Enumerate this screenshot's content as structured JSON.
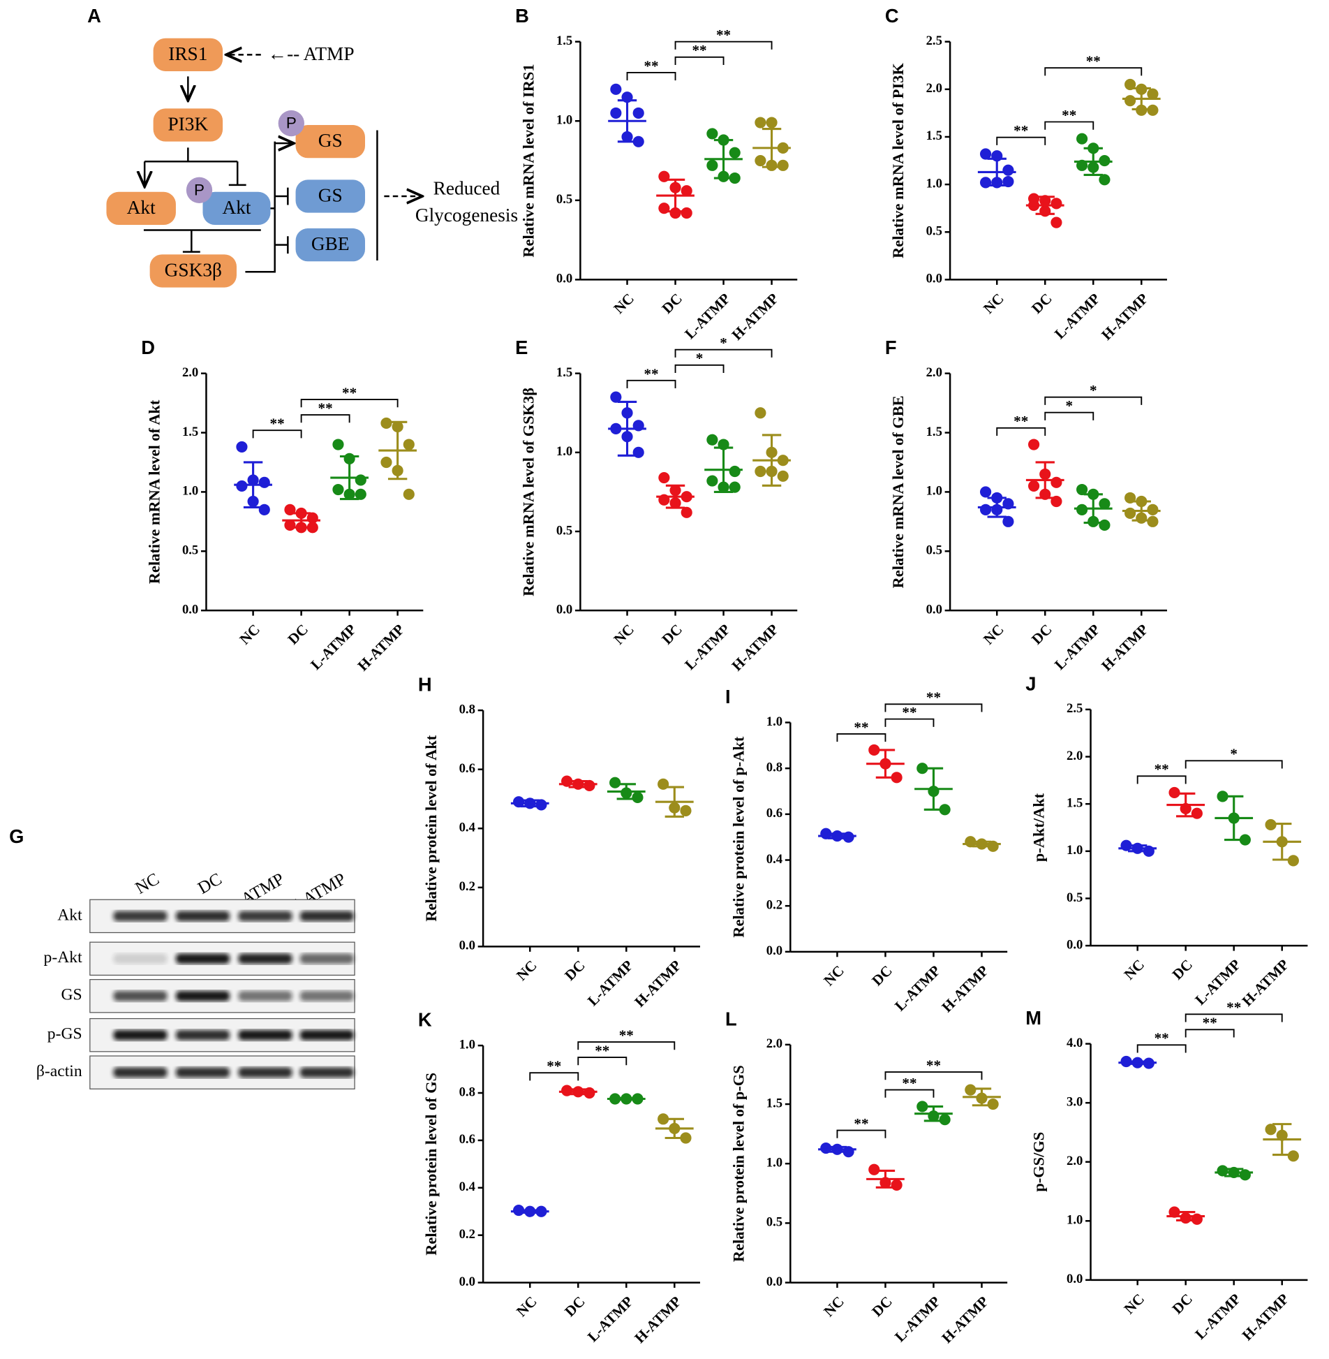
{
  "diagram": {
    "label": "A",
    "nodes": [
      "IRS1",
      "←-- ATMP",
      "PI3K",
      "Akt",
      "P",
      "Akt",
      "GSK3β",
      "P",
      "GS",
      "GS",
      "GBE",
      "Reduced",
      "Glycogenesis"
    ]
  },
  "blot": {
    "label": "G",
    "lanes": [
      "NC",
      "DC",
      "L-ATMP",
      "H-ATMP"
    ],
    "rows": [
      "Akt",
      "p-Akt",
      "GS",
      "p-GS",
      "β-actin"
    ]
  },
  "chart_data": [
    {
      "type": "dotplot",
      "label": "B",
      "ylabel": "Relative mRNA level of IRS1",
      "categories": [
        "NC",
        "DC",
        "L-ATMP",
        "H-ATMP"
      ],
      "colors": [
        "#1f1fd6",
        "#e8131b",
        "#178a17",
        "#9c8d1c"
      ],
      "groups": [
        [
          1.2,
          1.15,
          1.05,
          1.05,
          0.9,
          0.87
        ],
        [
          0.65,
          0.58,
          0.56,
          0.45,
          0.42,
          0.42
        ],
        [
          0.92,
          0.88,
          0.8,
          0.72,
          0.65,
          0.64
        ],
        [
          0.99,
          0.99,
          0.83,
          0.75,
          0.72,
          0.72
        ]
      ],
      "means": [
        1.0,
        0.53,
        0.76,
        0.83
      ],
      "sd": [
        0.13,
        0.1,
        0.12,
        0.12
      ],
      "ylim": [
        0,
        1.5
      ],
      "yticks": [
        {
          "value": 0,
          "label": "0.0"
        },
        0.5,
        {
          "value": 1,
          "label": "1.0"
        },
        1.5
      ],
      "brackets": [
        {
          "pair": [
            0,
            1
          ],
          "label": "**"
        },
        {
          "pair": [
            1,
            2
          ],
          "label": "**"
        },
        {
          "pair": [
            1,
            3
          ],
          "label": "**"
        }
      ]
    },
    {
      "type": "dotplot",
      "label": "C",
      "ylabel": "Relative mRNA level of PI3K",
      "categories": [
        "NC",
        "DC",
        "L-ATMP",
        "H-ATMP"
      ],
      "colors": [
        "#1f1fd6",
        "#e8131b",
        "#178a17",
        "#9c8d1c"
      ],
      "groups": [
        [
          1.32,
          1.3,
          1.15,
          1.02,
          1.02,
          1.03
        ],
        [
          0.85,
          0.83,
          0.8,
          0.78,
          0.72,
          0.6
        ],
        [
          1.48,
          1.38,
          1.25,
          1.2,
          1.18,
          1.05
        ],
        [
          2.05,
          2.0,
          1.95,
          1.88,
          1.78,
          1.78
        ]
      ],
      "means": [
        1.13,
        0.78,
        1.24,
        1.9
      ],
      "sd": [
        0.14,
        0.09,
        0.14,
        0.11
      ],
      "ylim": [
        0,
        2.5
      ],
      "yticks": [
        {
          "value": 0,
          "label": "0.0"
        },
        0.5,
        {
          "value": 1,
          "label": "1.0"
        },
        1.5,
        {
          "value": 2,
          "label": "2.0"
        },
        2.5
      ],
      "brackets": [
        {
          "pair": [
            0,
            1
          ],
          "label": "**"
        },
        {
          "pair": [
            1,
            2
          ],
          "label": "**"
        },
        {
          "pair": [
            1,
            3
          ],
          "label": "**"
        }
      ]
    },
    {
      "type": "dotplot",
      "label": "D",
      "ylabel": "Relative mRNA level of Akt",
      "categories": [
        "NC",
        "DC",
        "L-ATMP",
        "H-ATMP"
      ],
      "colors": [
        "#1f1fd6",
        "#e8131b",
        "#178a17",
        "#9c8d1c"
      ],
      "groups": [
        [
          1.38,
          1.1,
          1.08,
          1.05,
          0.92,
          0.85
        ],
        [
          0.85,
          0.82,
          0.78,
          0.72,
          0.7,
          0.7
        ],
        [
          1.4,
          1.28,
          1.1,
          1.02,
          0.98,
          0.98
        ],
        [
          1.58,
          1.55,
          1.4,
          1.25,
          1.18,
          0.98
        ]
      ],
      "means": [
        1.06,
        0.76,
        1.12,
        1.35
      ],
      "sd": [
        0.19,
        0.06,
        0.18,
        0.24
      ],
      "ylim": [
        0,
        2
      ],
      "yticks": [
        {
          "value": 0,
          "label": "0.0"
        },
        0.5,
        {
          "value": 1,
          "label": "1.0"
        },
        1.5,
        {
          "value": 2,
          "label": "2.0"
        }
      ],
      "brackets": [
        {
          "pair": [
            0,
            1
          ],
          "label": "**"
        },
        {
          "pair": [
            1,
            2
          ],
          "label": "**"
        },
        {
          "pair": [
            1,
            3
          ],
          "label": "**"
        }
      ]
    },
    {
      "type": "dotplot",
      "label": "E",
      "ylabel": "Relative mRNA level of GSK3β",
      "categories": [
        "NC",
        "DC",
        "L-ATMP",
        "H-ATMP"
      ],
      "colors": [
        "#1f1fd6",
        "#e8131b",
        "#178a17",
        "#9c8d1c"
      ],
      "groups": [
        [
          1.35,
          1.25,
          1.17,
          1.15,
          1.1,
          1.0
        ],
        [
          0.84,
          0.76,
          0.72,
          0.7,
          0.68,
          0.62
        ],
        [
          1.08,
          1.05,
          0.88,
          0.82,
          0.78,
          0.78
        ],
        [
          1.25,
          1.0,
          0.95,
          0.88,
          0.88,
          0.85
        ]
      ],
      "means": [
        1.15,
        0.72,
        0.89,
        0.95
      ],
      "sd": [
        0.17,
        0.07,
        0.14,
        0.16
      ],
      "ylim": [
        0,
        1.5
      ],
      "yticks": [
        {
          "value": 0,
          "label": "0.0"
        },
        0.5,
        {
          "value": 1,
          "label": "1.0"
        },
        1.5
      ],
      "brackets": [
        {
          "pair": [
            0,
            1
          ],
          "label": "**"
        },
        {
          "pair": [
            1,
            2
          ],
          "label": "*"
        },
        {
          "pair": [
            1,
            3
          ],
          "label": "*"
        }
      ]
    },
    {
      "type": "dotplot",
      "label": "F",
      "ylabel": "Relative mRNA level of GBE",
      "categories": [
        "NC",
        "DC",
        "L-ATMP",
        "H-ATMP"
      ],
      "colors": [
        "#1f1fd6",
        "#e8131b",
        "#178a17",
        "#9c8d1c"
      ],
      "groups": [
        [
          1.0,
          0.95,
          0.9,
          0.85,
          0.85,
          0.75
        ],
        [
          1.4,
          1.15,
          1.08,
          1.05,
          0.98,
          0.92
        ],
        [
          1.02,
          0.98,
          0.9,
          0.85,
          0.75,
          0.72
        ],
        [
          0.95,
          0.92,
          0.85,
          0.82,
          0.78,
          0.75
        ]
      ],
      "means": [
        0.87,
        1.1,
        0.86,
        0.84
      ],
      "sd": [
        0.08,
        0.15,
        0.12,
        0.08
      ],
      "ylim": [
        0,
        2
      ],
      "yticks": [
        {
          "value": 0,
          "label": "0.0"
        },
        0.5,
        {
          "value": 1,
          "label": "1.0"
        },
        1.5,
        {
          "value": 2,
          "label": "2.0"
        }
      ],
      "brackets": [
        {
          "pair": [
            0,
            1
          ],
          "label": "**"
        },
        {
          "pair": [
            1,
            2
          ],
          "label": "*"
        },
        {
          "pair": [
            1,
            3
          ],
          "label": "*"
        }
      ]
    },
    {
      "type": "dotplot",
      "label": "H",
      "ylabel": "Relative protein level of Akt",
      "categories": [
        "NC",
        "DC",
        "L-ATMP",
        "H-ATMP"
      ],
      "colors": [
        "#1f1fd6",
        "#e8131b",
        "#178a17",
        "#9c8d1c"
      ],
      "groups": [
        [
          0.49,
          0.485,
          0.48
        ],
        [
          0.56,
          0.55,
          0.545
        ],
        [
          0.555,
          0.52,
          0.505
        ],
        [
          0.55,
          0.47,
          0.46
        ]
      ],
      "means": [
        0.485,
        0.55,
        0.525,
        0.49
      ],
      "sd": [
        0.01,
        0.01,
        0.025,
        0.05
      ],
      "ylim": [
        0,
        0.8
      ],
      "yticks": [
        {
          "value": 0,
          "label": "0.0"
        },
        0.2,
        0.4,
        0.6,
        0.8
      ],
      "brackets": []
    },
    {
      "type": "dotplot",
      "label": "I",
      "ylabel": "Relative protein level of p-Akt",
      "categories": [
        "NC",
        "DC",
        "L-ATMP",
        "H-ATMP"
      ],
      "colors": [
        "#1f1fd6",
        "#e8131b",
        "#178a17",
        "#9c8d1c"
      ],
      "groups": [
        [
          0.515,
          0.505,
          0.5
        ],
        [
          0.88,
          0.82,
          0.76
        ],
        [
          0.8,
          0.7,
          0.62
        ],
        [
          0.48,
          0.47,
          0.46
        ]
      ],
      "means": [
        0.505,
        0.82,
        0.71,
        0.47
      ],
      "sd": [
        0.01,
        0.06,
        0.09,
        0.01
      ],
      "ylim": [
        0,
        1
      ],
      "yticks": [
        {
          "value": 0,
          "label": "0.0"
        },
        0.2,
        0.4,
        0.6,
        0.8,
        {
          "value": 1,
          "label": "1.0"
        }
      ],
      "brackets": [
        {
          "pair": [
            0,
            1
          ],
          "label": "**"
        },
        {
          "pair": [
            1,
            2
          ],
          "label": "**"
        },
        {
          "pair": [
            1,
            3
          ],
          "label": "**"
        }
      ]
    },
    {
      "type": "dotplot",
      "label": "J",
      "ylabel": "p-Akt/Akt",
      "categories": [
        "NC",
        "DC",
        "L-ATMP",
        "H-ATMP"
      ],
      "colors": [
        "#1f1fd6",
        "#e8131b",
        "#178a17",
        "#9c8d1c"
      ],
      "groups": [
        [
          1.06,
          1.03,
          1.0
        ],
        [
          1.62,
          1.45,
          1.4
        ],
        [
          1.58,
          1.35,
          1.12
        ],
        [
          1.28,
          1.1,
          0.9
        ]
      ],
      "means": [
        1.03,
        1.49,
        1.35,
        1.1
      ],
      "sd": [
        0.03,
        0.12,
        0.23,
        0.19
      ],
      "ylim": [
        0,
        2.5
      ],
      "yticks": [
        {
          "value": 0,
          "label": "0.0"
        },
        0.5,
        {
          "value": 1,
          "label": "1.0"
        },
        1.5,
        {
          "value": 2,
          "label": "2.0"
        },
        2.5
      ],
      "brackets": [
        {
          "pair": [
            0,
            1
          ],
          "label": "**"
        },
        {
          "pair": [
            1,
            3
          ],
          "label": "*"
        }
      ]
    },
    {
      "type": "dotplot",
      "label": "K",
      "ylabel": "Relative protein level of GS",
      "categories": [
        "NC",
        "DC",
        "L-ATMP",
        "H-ATMP"
      ],
      "colors": [
        "#1f1fd6",
        "#e8131b",
        "#178a17",
        "#9c8d1c"
      ],
      "groups": [
        [
          0.305,
          0.3,
          0.3
        ],
        [
          0.81,
          0.805,
          0.8
        ],
        [
          0.775,
          0.775,
          0.775
        ],
        [
          0.69,
          0.65,
          0.61
        ]
      ],
      "means": [
        0.3,
        0.805,
        0.775,
        0.65
      ],
      "sd": [
        0.005,
        0.01,
        0.003,
        0.04
      ],
      "ylim": [
        0,
        1
      ],
      "yticks": [
        {
          "value": 0,
          "label": "0.0"
        },
        0.2,
        0.4,
        0.6,
        0.8,
        {
          "value": 1,
          "label": "1.0"
        }
      ],
      "brackets": [
        {
          "pair": [
            0,
            1
          ],
          "label": "**"
        },
        {
          "pair": [
            1,
            2
          ],
          "label": "**"
        },
        {
          "pair": [
            1,
            3
          ],
          "label": "**"
        }
      ]
    },
    {
      "type": "dotplot",
      "label": "L",
      "ylabel": "Relative protein level of p-GS",
      "categories": [
        "NC",
        "DC",
        "L-ATMP",
        "H-ATMP"
      ],
      "colors": [
        "#1f1fd6",
        "#e8131b",
        "#178a17",
        "#9c8d1c"
      ],
      "groups": [
        [
          1.13,
          1.12,
          1.1
        ],
        [
          0.95,
          0.84,
          0.82
        ],
        [
          1.48,
          1.4,
          1.37
        ],
        [
          1.62,
          1.55,
          1.5
        ]
      ],
      "means": [
        1.12,
        0.87,
        1.42,
        1.56
      ],
      "sd": [
        0.02,
        0.07,
        0.06,
        0.07
      ],
      "ylim": [
        0,
        2
      ],
      "yticks": [
        {
          "value": 0,
          "label": "0.0"
        },
        0.5,
        {
          "value": 1,
          "label": "1.0"
        },
        1.5,
        {
          "value": 2,
          "label": "2.0"
        }
      ],
      "brackets": [
        {
          "pair": [
            0,
            1
          ],
          "label": "**"
        },
        {
          "pair": [
            1,
            2
          ],
          "label": "**"
        },
        {
          "pair": [
            1,
            3
          ],
          "label": "**"
        }
      ]
    },
    {
      "type": "dotplot",
      "label": "M",
      "ylabel": "p-GS/GS",
      "categories": [
        "NC",
        "DC",
        "L-ATMP",
        "H-ATMP"
      ],
      "colors": [
        "#1f1fd6",
        "#e8131b",
        "#178a17",
        "#9c8d1c"
      ],
      "groups": [
        [
          3.7,
          3.68,
          3.67
        ],
        [
          1.15,
          1.05,
          1.03
        ],
        [
          1.85,
          1.82,
          1.78
        ],
        [
          2.55,
          2.45,
          2.1
        ]
      ],
      "means": [
        3.68,
        1.08,
        1.82,
        2.38
      ],
      "sd": [
        0.02,
        0.07,
        0.06,
        0.26
      ],
      "ylim": [
        0,
        4
      ],
      "yticks": [
        {
          "value": 0,
          "label": "0.0"
        },
        {
          "value": 1,
          "label": "1.0"
        },
        {
          "value": 2,
          "label": "2.0"
        },
        {
          "value": 3,
          "label": "3.0"
        },
        {
          "value": 4,
          "label": "4.0"
        }
      ],
      "brackets": [
        {
          "pair": [
            0,
            1
          ],
          "label": "**"
        },
        {
          "pair": [
            1,
            2
          ],
          "label": "**"
        },
        {
          "pair": [
            1,
            3
          ],
          "label": "**"
        }
      ]
    }
  ]
}
